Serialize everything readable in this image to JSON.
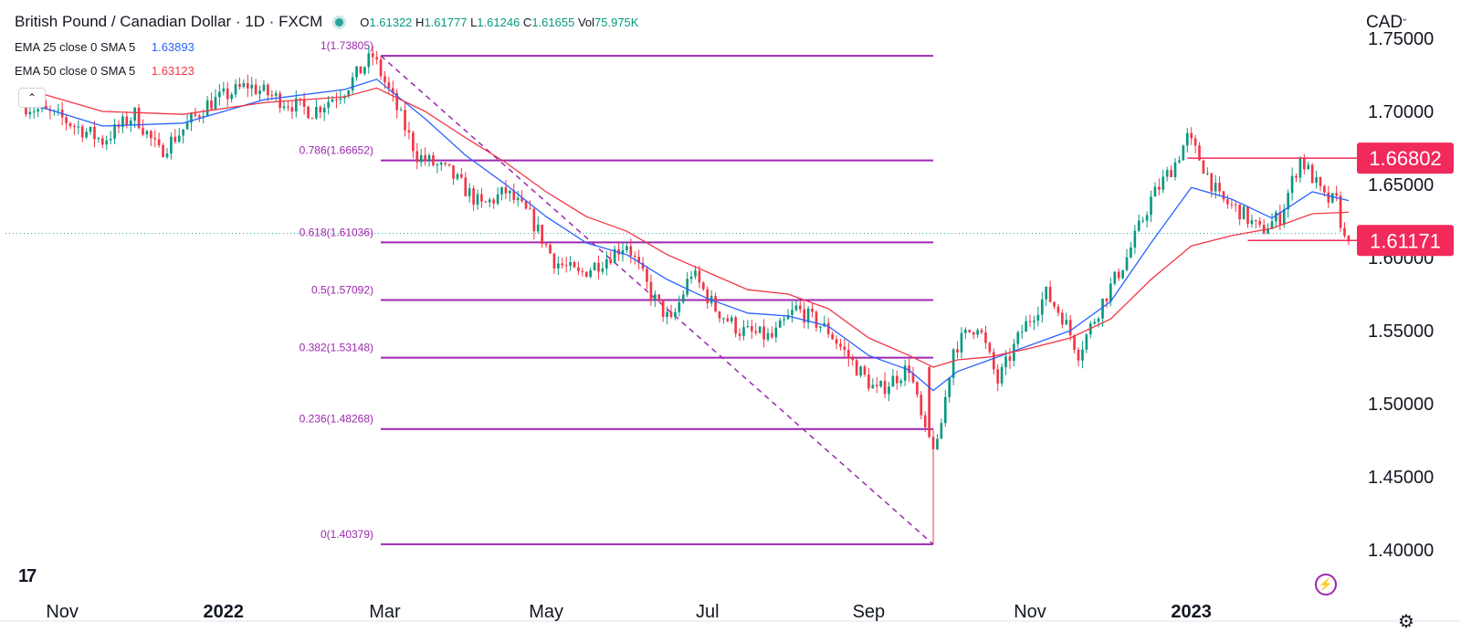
{
  "header": {
    "title": "British Pound / Canadian Dollar · 1D · FXCM",
    "ohlc": {
      "o_label": "O",
      "o": "1.61322",
      "h_label": "H",
      "h": "1.61777",
      "l_label": "L",
      "l": "1.61246",
      "c_label": "C",
      "c": "1.61655",
      "vol_label": "Vol",
      "vol": "75.975K"
    }
  },
  "indicators": [
    {
      "label": "EMA 25 close 0 SMA 5",
      "value": "1.63893",
      "color": "#2962ff"
    },
    {
      "label": "EMA 50 close 0 SMA 5",
      "value": "1.63123",
      "color": "#f23645"
    }
  ],
  "currency_menu": "CAD",
  "icons": {
    "collapse": "chevron-up-icon",
    "logo": "tradingview-logo",
    "flash": "lightning-icon",
    "settings": "gear-icon"
  },
  "colors": {
    "up": "#089981",
    "down": "#f23645",
    "ema25": "#2962ff",
    "ema50": "#f23645",
    "fib": "#9c27b0",
    "level_marker": "#f2295b",
    "text": "#131722"
  },
  "chart_data": {
    "type": "candlestick",
    "symbol": "GBPCAD",
    "interval": "1D",
    "y_axis": {
      "ticks": [
        "1.40000",
        "1.45000",
        "1.50000",
        "1.55000",
        "1.60000",
        "1.65000",
        "1.70000",
        "1.75000"
      ],
      "ylim": [
        1.37,
        1.77
      ]
    },
    "x_axis": {
      "ticks": [
        {
          "label": "Nov",
          "t": 0.5,
          "bold": false
        },
        {
          "label": "2022",
          "t": 2.5,
          "bold": true
        },
        {
          "label": "Mar",
          "t": 4.5,
          "bold": false
        },
        {
          "label": "May",
          "t": 6.5,
          "bold": false
        },
        {
          "label": "Jul",
          "t": 8.5,
          "bold": false
        },
        {
          "label": "Sep",
          "t": 10.5,
          "bold": false
        },
        {
          "label": "Nov",
          "t": 12.5,
          "bold": false
        },
        {
          "label": "2023",
          "t": 14.5,
          "bold": true
        }
      ],
      "tlim": [
        0,
        16.1
      ]
    },
    "price_path": [
      [
        0.0,
        1.705
      ],
      [
        0.5,
        1.695
      ],
      [
        1.0,
        1.68
      ],
      [
        1.4,
        1.698
      ],
      [
        1.7,
        1.672
      ],
      [
        1.95,
        1.685
      ],
      [
        2.3,
        1.705
      ],
      [
        2.8,
        1.718
      ],
      [
        3.2,
        1.708
      ],
      [
        3.6,
        1.7
      ],
      [
        4.0,
        1.715
      ],
      [
        4.35,
        1.738
      ],
      [
        4.6,
        1.708
      ],
      [
        4.9,
        1.67
      ],
      [
        5.3,
        1.658
      ],
      [
        5.7,
        1.635
      ],
      [
        6.0,
        1.645
      ],
      [
        6.3,
        1.628
      ],
      [
        6.6,
        1.598
      ],
      [
        6.9,
        1.588
      ],
      [
        7.2,
        1.598
      ],
      [
        7.5,
        1.61
      ],
      [
        7.8,
        1.575
      ],
      [
        8.05,
        1.555
      ],
      [
        8.3,
        1.59
      ],
      [
        8.6,
        1.565
      ],
      [
        8.9,
        1.55
      ],
      [
        9.3,
        1.545
      ],
      [
        9.6,
        1.565
      ],
      [
        10.0,
        1.55
      ],
      [
        10.3,
        1.528
      ],
      [
        10.6,
        1.508
      ],
      [
        11.0,
        1.525
      ],
      [
        11.2,
        1.478
      ],
      [
        11.35,
        1.47
      ],
      [
        11.55,
        1.538
      ],
      [
        11.85,
        1.555
      ],
      [
        12.1,
        1.515
      ],
      [
        12.4,
        1.55
      ],
      [
        12.7,
        1.575
      ],
      [
        12.9,
        1.56
      ],
      [
        13.1,
        1.535
      ],
      [
        13.4,
        1.57
      ],
      [
        13.7,
        1.6
      ],
      [
        14.0,
        1.64
      ],
      [
        14.3,
        1.665
      ],
      [
        14.45,
        1.682
      ],
      [
        14.6,
        1.668
      ],
      [
        14.85,
        1.64
      ],
      [
        15.1,
        1.632
      ],
      [
        15.35,
        1.618
      ],
      [
        15.6,
        1.628
      ],
      [
        15.85,
        1.668
      ],
      [
        16.0,
        1.655
      ],
      [
        16.15,
        1.64
      ],
      [
        16.3,
        1.638
      ],
      [
        16.4,
        1.612
      ],
      [
        16.45,
        1.616
      ]
    ],
    "ema25_path": [
      [
        0.0,
        1.707
      ],
      [
        1.0,
        1.69
      ],
      [
        2.0,
        1.692
      ],
      [
        3.0,
        1.708
      ],
      [
        4.0,
        1.715
      ],
      [
        4.4,
        1.722
      ],
      [
        5.0,
        1.695
      ],
      [
        5.5,
        1.67
      ],
      [
        6.0,
        1.65
      ],
      [
        6.5,
        1.628
      ],
      [
        7.0,
        1.61
      ],
      [
        7.5,
        1.602
      ],
      [
        8.0,
        1.585
      ],
      [
        8.5,
        1.572
      ],
      [
        9.0,
        1.562
      ],
      [
        9.5,
        1.56
      ],
      [
        10.0,
        1.553
      ],
      [
        10.5,
        1.533
      ],
      [
        11.0,
        1.523
      ],
      [
        11.3,
        1.509
      ],
      [
        11.6,
        1.522
      ],
      [
        12.0,
        1.53
      ],
      [
        12.5,
        1.54
      ],
      [
        13.0,
        1.55
      ],
      [
        13.5,
        1.57
      ],
      [
        14.0,
        1.61
      ],
      [
        14.5,
        1.648
      ],
      [
        15.0,
        1.64
      ],
      [
        15.5,
        1.627
      ],
      [
        16.0,
        1.645
      ],
      [
        16.45,
        1.639
      ]
    ],
    "ema50_path": [
      [
        0.0,
        1.716
      ],
      [
        1.0,
        1.7
      ],
      [
        2.0,
        1.698
      ],
      [
        3.0,
        1.706
      ],
      [
        4.0,
        1.71
      ],
      [
        4.4,
        1.716
      ],
      [
        5.0,
        1.7
      ],
      [
        5.5,
        1.682
      ],
      [
        6.0,
        1.665
      ],
      [
        6.5,
        1.645
      ],
      [
        7.0,
        1.628
      ],
      [
        7.5,
        1.618
      ],
      [
        8.0,
        1.602
      ],
      [
        8.5,
        1.59
      ],
      [
        9.0,
        1.578
      ],
      [
        9.5,
        1.575
      ],
      [
        10.0,
        1.565
      ],
      [
        10.5,
        1.545
      ],
      [
        11.0,
        1.533
      ],
      [
        11.3,
        1.525
      ],
      [
        11.6,
        1.53
      ],
      [
        12.0,
        1.532
      ],
      [
        12.5,
        1.538
      ],
      [
        13.0,
        1.545
      ],
      [
        13.5,
        1.558
      ],
      [
        14.0,
        1.585
      ],
      [
        14.5,
        1.608
      ],
      [
        15.0,
        1.615
      ],
      [
        15.5,
        1.62
      ],
      [
        16.0,
        1.63
      ],
      [
        16.45,
        1.631
      ]
    ],
    "fib_levels": [
      {
        "ratio": "1",
        "value": 1.73805,
        "label": "1(1.73805)"
      },
      {
        "ratio": "0.786",
        "value": 1.66652,
        "label": "0.786(1.66652)"
      },
      {
        "ratio": "0.618",
        "value": 1.61036,
        "label": "0.618(1.61036)"
      },
      {
        "ratio": "0.5",
        "value": 1.57092,
        "label": "0.5(1.57092)"
      },
      {
        "ratio": "0.382",
        "value": 1.53148,
        "label": "0.382(1.53148)"
      },
      {
        "ratio": "0.236",
        "value": 1.48268,
        "label": "0.236(1.48268)"
      },
      {
        "ratio": "0",
        "value": 1.40379,
        "label": "0(1.40379)"
      }
    ],
    "fib_range": {
      "t_start": 4.45,
      "t_end": 11.3
    },
    "fib_trend": {
      "from": [
        4.45,
        1.73805
      ],
      "to": [
        11.3,
        1.40379
      ]
    },
    "horizontal_levels": [
      {
        "value": 1.66802,
        "label": "1.66802",
        "t_start": 14.45,
        "t_end": 16.8
      },
      {
        "value": 1.61171,
        "label": "1.61171",
        "t_start": 15.2,
        "t_end": 16.8
      }
    ],
    "last_price_line": 1.6165
  }
}
